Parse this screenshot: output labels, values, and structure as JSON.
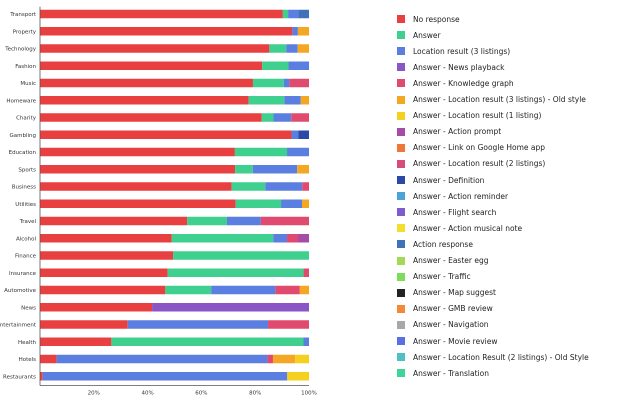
{
  "chart_data": {
    "type": "bar",
    "orientation": "horizontal",
    "stacked": true,
    "normalized": true,
    "categories": [
      "Transport",
      "Property",
      "Technology",
      "Fashion",
      "Music",
      "Homeware",
      "Charity",
      "Gambling",
      "Education",
      "Sports",
      "Business",
      "Utilities",
      "Travel",
      "Alcohol",
      "Finance",
      "Insurance",
      "Automotive",
      "News",
      "Entertainment",
      "Health",
      "Hotels",
      "Restaurants"
    ],
    "x_ticks": [
      "20%",
      "40%",
      "60%",
      "80%",
      "100%"
    ],
    "xlim": [
      0,
      100
    ],
    "grid": false,
    "legend_position": "right",
    "series": [
      {
        "name": "No response",
        "color": "#e84040",
        "values": [
          93,
          91,
          81,
          76,
          76,
          76,
          75,
          72,
          71,
          66,
          57,
          56,
          52,
          48,
          47,
          47,
          41,
          40,
          30,
          26,
          6,
          1
        ]
      },
      {
        "name": "Answer",
        "color": "#3fcf8e",
        "values": [
          2,
          0,
          6,
          9,
          11,
          13,
          4,
          0,
          19,
          6,
          10,
          13,
          14,
          37,
          48,
          50,
          15,
          0,
          0,
          70,
          0,
          0
        ]
      },
      {
        "name": "Location result (3 listings)",
        "color": "#5b7fe0",
        "values": [
          4,
          2,
          4,
          7,
          2,
          6,
          6,
          2,
          8,
          15,
          11,
          6,
          12,
          5,
          0,
          0,
          21,
          0,
          48,
          2,
          76,
          90
        ]
      },
      {
        "name": "Answer - News playback",
        "color": "#8a55c4",
        "values": [
          0,
          0,
          0,
          0,
          0,
          0,
          0,
          0,
          0,
          0,
          0,
          0,
          0,
          0,
          0,
          0,
          0,
          56,
          0,
          0,
          0,
          0
        ]
      },
      {
        "name": "Answer - Knowledge graph",
        "color": "#e04a6e",
        "values": [
          0,
          0,
          0,
          0,
          7,
          0,
          6,
          0,
          0,
          0,
          2,
          0,
          17,
          4,
          0,
          2,
          8,
          0,
          14,
          0,
          2,
          0
        ]
      },
      {
        "name": "Answer - Location result (3 listings) - Old style",
        "color": "#f5a623",
        "values": [
          0,
          4,
          4,
          0,
          0,
          3,
          0,
          0,
          0,
          4,
          0,
          2,
          0,
          0,
          0,
          0,
          3,
          0,
          0,
          0,
          8,
          0
        ]
      },
      {
        "name": "Answer - Location result (1 listing)",
        "color": "#f5d01e",
        "values": [
          0,
          0,
          0,
          0,
          0,
          0,
          0,
          0,
          0,
          0,
          0,
          0,
          0,
          0,
          0,
          0,
          0,
          0,
          0,
          0,
          5,
          8
        ]
      },
      {
        "name": "Answer - Action prompt",
        "color": "#a64ca6",
        "values": [
          0,
          0,
          0,
          0,
          0,
          0,
          0,
          0,
          0,
          0,
          0,
          0,
          0,
          4,
          0,
          0,
          0,
          0,
          0,
          0,
          0,
          0
        ]
      },
      {
        "name": "Answer - Link on Google Home app",
        "color": "#f0763a",
        "values": [
          0,
          0,
          0,
          0,
          0,
          0,
          0,
          0,
          0,
          0,
          0,
          0,
          0,
          0,
          0,
          0,
          0,
          0,
          0,
          0,
          0,
          0
        ]
      },
      {
        "name": "Answer - Location result (2 listings)",
        "color": "#d84b7a",
        "values": [
          0,
          0,
          0,
          0,
          0,
          0,
          0,
          0,
          0,
          0,
          0,
          0,
          0,
          0,
          0,
          0,
          0,
          0,
          0,
          0,
          0,
          0
        ]
      },
      {
        "name": "Answer - Definition",
        "color": "#2b4aa8",
        "values": [
          0,
          0,
          0,
          0,
          0,
          0,
          0,
          3,
          0,
          0,
          0,
          0,
          0,
          0,
          0,
          0,
          0,
          0,
          0,
          0,
          0,
          0
        ]
      },
      {
        "name": "Answer - Action reminder",
        "color": "#4ba3d6",
        "values": [
          0,
          0,
          0,
          0,
          0,
          0,
          0,
          0,
          0,
          0,
          0,
          0,
          0,
          0,
          0,
          0,
          0,
          0,
          0,
          0,
          0,
          0
        ]
      },
      {
        "name": "Answer - Flight search",
        "color": "#7d5ccf",
        "values": [
          0,
          0,
          0,
          0,
          0,
          0,
          0,
          0,
          0,
          0,
          0,
          0,
          0,
          0,
          0,
          0,
          0,
          0,
          0,
          0,
          0,
          0
        ]
      },
      {
        "name": "Answer - Action musical note",
        "color": "#f2df2b",
        "values": [
          0,
          0,
          0,
          0,
          0,
          0,
          0,
          0,
          0,
          0,
          0,
          0,
          0,
          0,
          0,
          0,
          0,
          0,
          0,
          0,
          0,
          0
        ]
      },
      {
        "name": "Action response",
        "color": "#3f72b8",
        "values": [
          4,
          0,
          0,
          0,
          0,
          0,
          0,
          0,
          0,
          0,
          0,
          0,
          0,
          0,
          0,
          0,
          0,
          0,
          0,
          0,
          0,
          0
        ]
      },
      {
        "name": "Answer - Easter egg",
        "color": "#a4d957",
        "values": [
          0,
          0,
          0,
          0,
          0,
          0,
          0,
          0,
          0,
          0,
          0,
          0,
          0,
          0,
          0,
          0,
          0,
          0,
          0,
          0,
          0,
          0
        ]
      },
      {
        "name": "Answer - Traffic",
        "color": "#7fdc5a",
        "values": [
          0,
          0,
          0,
          0,
          0,
          0,
          0,
          0,
          0,
          0,
          0,
          0,
          0,
          0,
          0,
          0,
          0,
          0,
          0,
          0,
          0,
          0
        ]
      },
      {
        "name": "Answer - Map suggest",
        "color": "#222222",
        "values": [
          0,
          0,
          0,
          0,
          0,
          0,
          0,
          0,
          0,
          0,
          0,
          0,
          0,
          0,
          0,
          0,
          0,
          0,
          0,
          0,
          0,
          0
        ]
      },
      {
        "name": "Answer - GMB review",
        "color": "#f28a3a",
        "values": [
          0,
          0,
          0,
          0,
          0,
          0,
          0,
          0,
          0,
          0,
          0,
          0,
          0,
          0,
          0,
          0,
          0,
          0,
          0,
          0,
          0,
          0
        ]
      },
      {
        "name": "Answer - Navigation",
        "color": "#a8a8a8",
        "values": [
          0,
          0,
          0,
          0,
          0,
          0,
          0,
          0,
          0,
          0,
          0,
          0,
          0,
          0,
          0,
          0,
          0,
          0,
          0,
          0,
          0,
          0
        ]
      },
      {
        "name": "Answer - Movie review",
        "color": "#5a6fe0",
        "values": [
          0,
          0,
          0,
          0,
          0,
          0,
          0,
          0,
          0,
          0,
          0,
          0,
          0,
          0,
          0,
          0,
          0,
          0,
          0,
          0,
          0,
          0
        ]
      },
      {
        "name": "Answer - Location Result (2 listings) - Old Style",
        "color": "#4fc0c4",
        "values": [
          0,
          0,
          0,
          0,
          0,
          0,
          0,
          0,
          0,
          0,
          0,
          0,
          0,
          0,
          0,
          0,
          0,
          0,
          0,
          0,
          0,
          0
        ]
      },
      {
        "name": "Answer - Translation",
        "color": "#3fd49a",
        "values": [
          0,
          0,
          0,
          0,
          0,
          0,
          0,
          0,
          0,
          0,
          0,
          0,
          0,
          0,
          0,
          0,
          0,
          0,
          0,
          0,
          0,
          0
        ]
      }
    ]
  }
}
